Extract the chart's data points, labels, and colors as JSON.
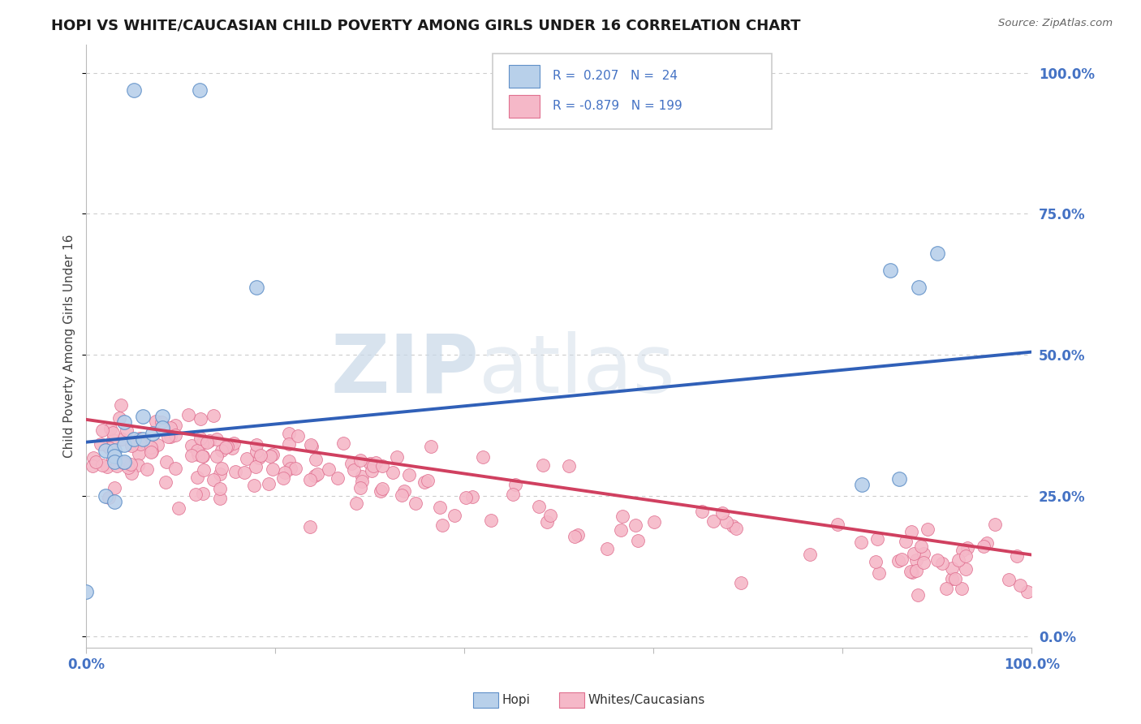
{
  "title": "HOPI VS WHITE/CAUCASIAN CHILD POVERTY AMONG GIRLS UNDER 16 CORRELATION CHART",
  "source": "Source: ZipAtlas.com",
  "ylabel": "Child Poverty Among Girls Under 16",
  "xlim": [
    0.0,
    1.0
  ],
  "ylim": [
    -0.02,
    1.05
  ],
  "ytick_vals": [
    0.0,
    0.25,
    0.5,
    0.75,
    1.0
  ],
  "xtick_vals": [
    0.0,
    0.2,
    0.4,
    0.6,
    0.8,
    1.0
  ],
  "xtick_labels": [
    "0.0%",
    "",
    "",
    "",
    "",
    "100.0%"
  ],
  "watermark_zip": "ZIP",
  "watermark_atlas": "atlas",
  "background_color": "#ffffff",
  "grid_color": "#cccccc",
  "blue_color": "#4472c4",
  "pink_color": "#e06080",
  "blue_scatter_face": "#b8d0ea",
  "blue_scatter_edge": "#6090c8",
  "pink_scatter_face": "#f5b8c8",
  "pink_scatter_edge": "#e07090",
  "blue_line_color": "#3060b8",
  "pink_line_color": "#d04060",
  "right_label_color": "#4472c4",
  "hopi_line_x0": 0.0,
  "hopi_line_y0": 0.345,
  "hopi_line_x1": 1.0,
  "hopi_line_y1": 0.505,
  "white_line_x0": 0.0,
  "white_line_y0": 0.385,
  "white_line_x1": 1.0,
  "white_line_y1": 0.145,
  "hopi_points": [
    [
      0.05,
      0.97
    ],
    [
      0.12,
      0.97
    ],
    [
      0.18,
      0.62
    ],
    [
      0.04,
      0.38
    ],
    [
      0.06,
      0.39
    ],
    [
      0.08,
      0.39
    ],
    [
      0.02,
      0.33
    ],
    [
      0.03,
      0.33
    ],
    [
      0.03,
      0.32
    ],
    [
      0.04,
      0.34
    ],
    [
      0.05,
      0.35
    ],
    [
      0.06,
      0.35
    ],
    [
      0.07,
      0.36
    ],
    [
      0.08,
      0.37
    ],
    [
      0.03,
      0.31
    ],
    [
      0.04,
      0.31
    ],
    [
      0.02,
      0.25
    ],
    [
      0.03,
      0.24
    ],
    [
      0.85,
      0.65
    ],
    [
      0.9,
      0.68
    ],
    [
      0.88,
      0.62
    ],
    [
      0.82,
      0.27
    ],
    [
      0.86,
      0.28
    ],
    [
      0.0,
      0.08
    ]
  ],
  "white_seed": 123
}
